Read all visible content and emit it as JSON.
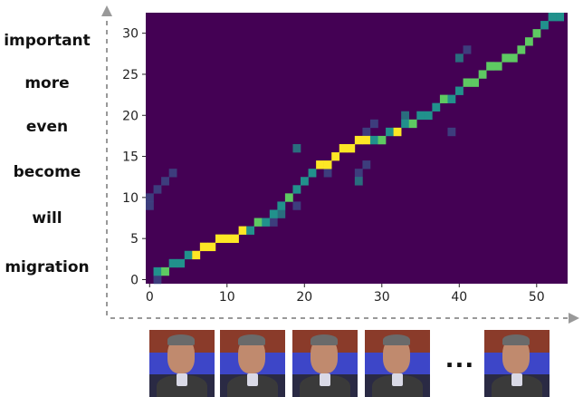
{
  "words": [
    "important",
    "more",
    "even",
    "become",
    "will",
    "migration"
  ],
  "ellipsis": "...",
  "colors": {
    "background": "#440154",
    "low": "#3b528b",
    "mid": "#21918c",
    "high": "#5ec962",
    "peak": "#fde725",
    "axis_arrow": "#999999"
  },
  "chart_data": {
    "type": "heatmap",
    "xlim": [
      0,
      54
    ],
    "ylim": [
      0,
      32
    ],
    "x_ticks": [
      0,
      10,
      20,
      30,
      40,
      50
    ],
    "y_ticks": [
      0,
      5,
      10,
      15,
      20,
      25,
      30
    ],
    "alignment_path": [
      [
        1,
        1
      ],
      [
        2,
        1
      ],
      [
        3,
        2
      ],
      [
        4,
        2
      ],
      [
        5,
        3
      ],
      [
        6,
        3
      ],
      [
        7,
        4
      ],
      [
        8,
        4
      ],
      [
        9,
        5
      ],
      [
        10,
        5
      ],
      [
        11,
        5
      ],
      [
        12,
        6
      ],
      [
        13,
        6
      ],
      [
        14,
        7
      ],
      [
        15,
        7
      ],
      [
        16,
        8
      ],
      [
        17,
        9
      ],
      [
        18,
        10
      ],
      [
        19,
        11
      ],
      [
        20,
        12
      ],
      [
        21,
        13
      ],
      [
        22,
        14
      ],
      [
        23,
        14
      ],
      [
        24,
        15
      ],
      [
        25,
        16
      ],
      [
        26,
        16
      ],
      [
        27,
        17
      ],
      [
        28,
        17
      ],
      [
        29,
        17
      ],
      [
        30,
        17
      ],
      [
        31,
        18
      ],
      [
        32,
        18
      ],
      [
        33,
        19
      ],
      [
        34,
        19
      ],
      [
        35,
        20
      ],
      [
        36,
        20
      ],
      [
        37,
        21
      ],
      [
        38,
        22
      ],
      [
        39,
        22
      ],
      [
        40,
        23
      ],
      [
        41,
        24
      ],
      [
        42,
        24
      ],
      [
        43,
        25
      ],
      [
        44,
        26
      ],
      [
        45,
        26
      ],
      [
        46,
        27
      ],
      [
        47,
        27
      ],
      [
        48,
        28
      ],
      [
        49,
        29
      ],
      [
        50,
        30
      ],
      [
        51,
        31
      ],
      [
        52,
        32
      ],
      [
        53,
        32
      ]
    ],
    "side_cells": [
      [
        0,
        9
      ],
      [
        0,
        10
      ],
      [
        1,
        11
      ],
      [
        2,
        12
      ],
      [
        3,
        13
      ],
      [
        16,
        7
      ],
      [
        17,
        8
      ],
      [
        27,
        13
      ],
      [
        28,
        14
      ],
      [
        27,
        12
      ],
      [
        28,
        18
      ],
      [
        29,
        19
      ],
      [
        33,
        20
      ],
      [
        41,
        28
      ],
      [
        44,
        26
      ],
      [
        40,
        27
      ],
      [
        39,
        18
      ],
      [
        19,
        9
      ],
      [
        19,
        16
      ],
      [
        23,
        13
      ],
      [
        1,
        0
      ]
    ],
    "frames": 5
  }
}
